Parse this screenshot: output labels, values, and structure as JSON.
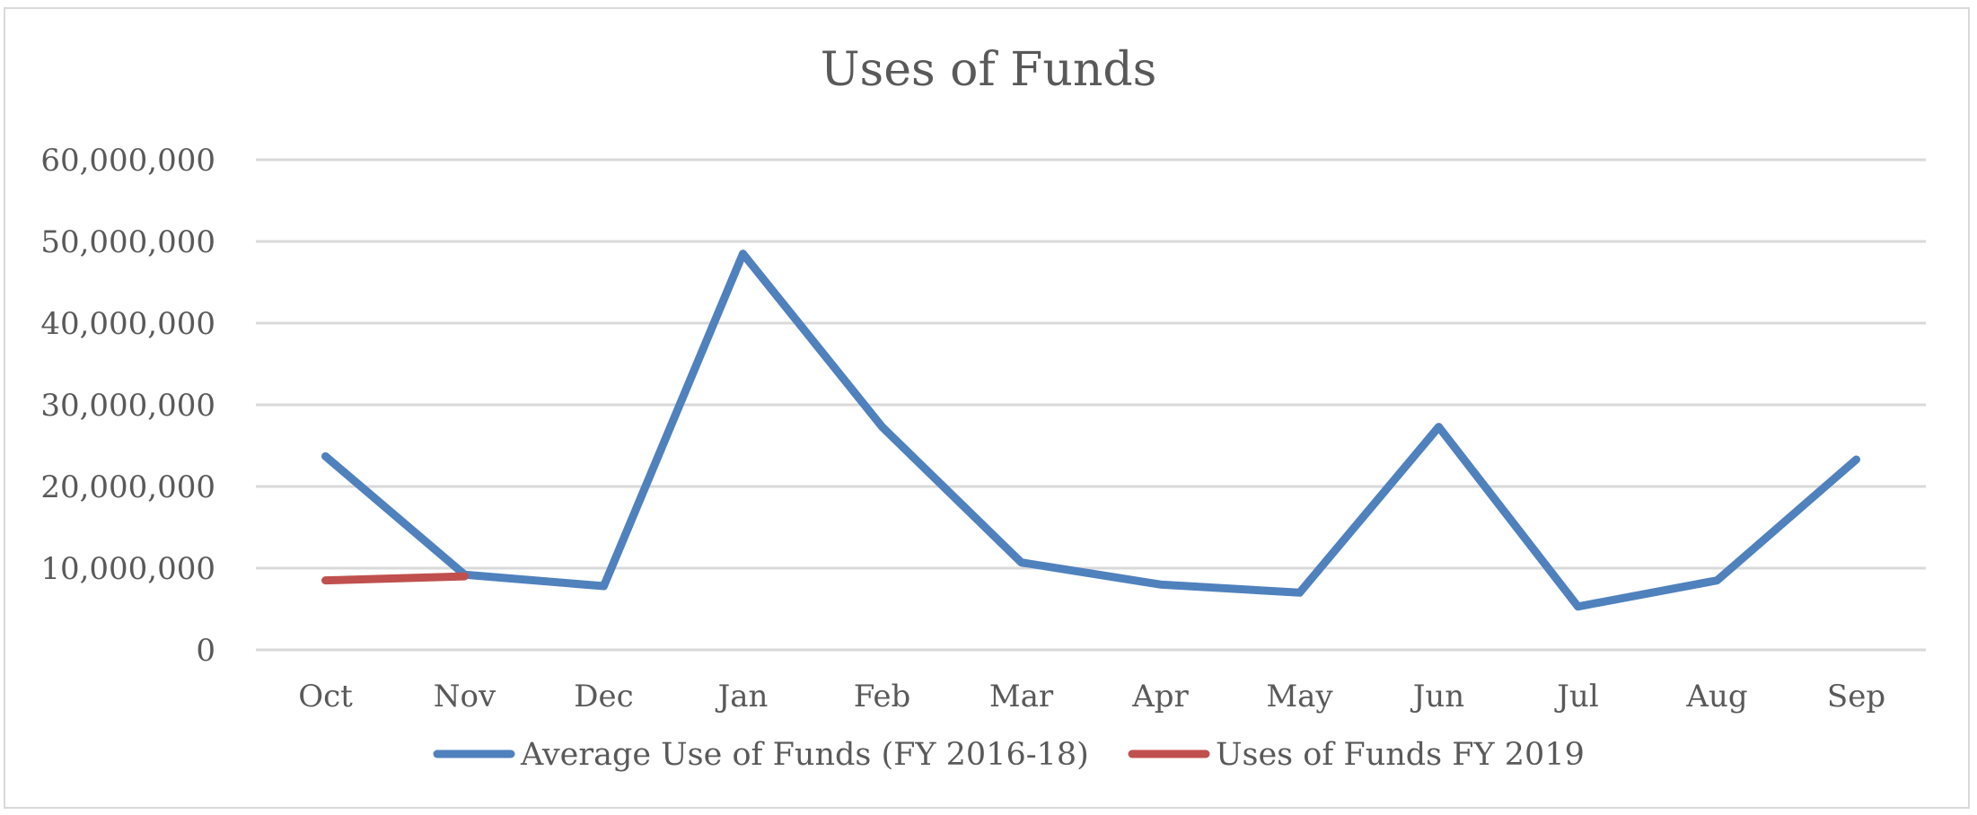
{
  "chart_data": {
    "type": "line",
    "title": "Uses of Funds",
    "xlabel": "",
    "ylabel": "",
    "categories": [
      "Oct",
      "Nov",
      "Dec",
      "Jan",
      "Feb",
      "Mar",
      "Apr",
      "May",
      "Jun",
      "Jul",
      "Aug",
      "Sep"
    ],
    "ylim": [
      0,
      60000000
    ],
    "yticks": [
      0,
      10000000,
      20000000,
      30000000,
      40000000,
      50000000,
      60000000
    ],
    "ytick_labels": [
      "0",
      "10,000,000",
      "20,000,000",
      "30,000,000",
      "40,000,000",
      "50,000,000",
      "60,000,000"
    ],
    "grid": true,
    "legend_position": "bottom",
    "series": [
      {
        "name": "Average Use of Funds (FY 2016-18)",
        "color": "#4f81bd",
        "values": [
          23700000,
          9200000,
          7800000,
          48500000,
          27300000,
          10700000,
          8000000,
          7000000,
          27300000,
          5300000,
          8500000,
          23300000
        ]
      },
      {
        "name": "Uses of Funds FY 2019",
        "color": "#c0504d",
        "values": [
          8500000,
          9000000,
          null,
          null,
          null,
          null,
          null,
          null,
          null,
          null,
          null,
          null
        ]
      }
    ]
  }
}
